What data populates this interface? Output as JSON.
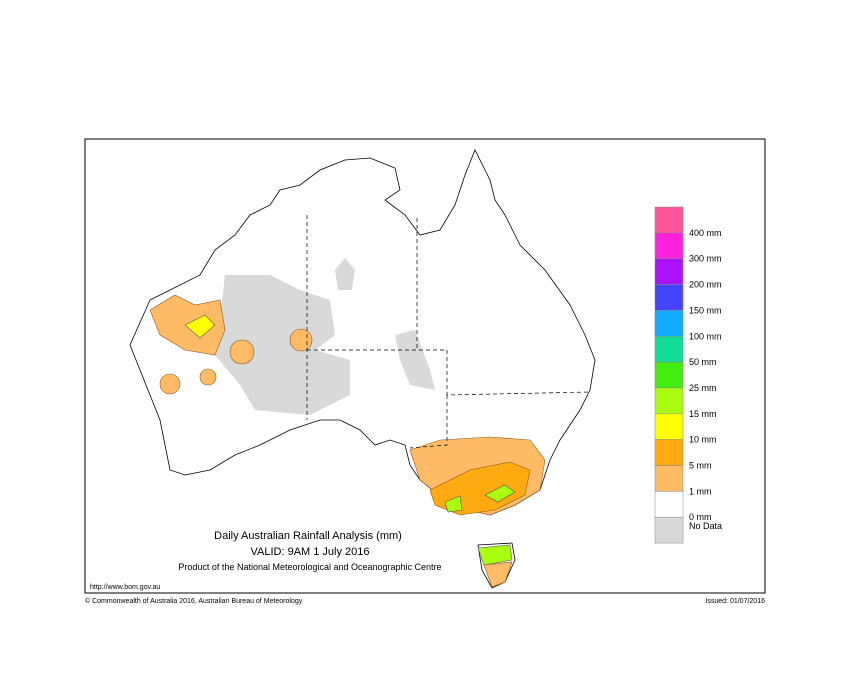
{
  "map": {
    "title": "Daily Australian Rainfall Analysis (mm)",
    "valid": "VALID: 9AM  1 July 2016",
    "product": "Product of the National Meteorological and Oceanographic Centre",
    "url": "http://www.bom.gov.au"
  },
  "footer": {
    "copyright": "© Commonwealth of Australia 2016, Australian Bureau of Meteorology",
    "issued": "Issued: 01/07/2016"
  },
  "legend": {
    "colors": [
      "#ff5599",
      "#ff22dd",
      "#aa11ff",
      "#4444ff",
      "#11aaff",
      "#11dd99",
      "#44ee11",
      "#aaff11",
      "#ffff00",
      "#ffaa11",
      "#ffbb66",
      "#ffffff",
      "#d9d9d9"
    ],
    "labels": [
      "400 mm",
      "300 mm",
      "200 mm",
      "150 mm",
      "100 mm",
      "50 mm",
      "25 mm",
      "15 mm",
      "10 mm",
      "5 mm",
      "1 mm",
      "0 mm",
      "No Data"
    ]
  }
}
